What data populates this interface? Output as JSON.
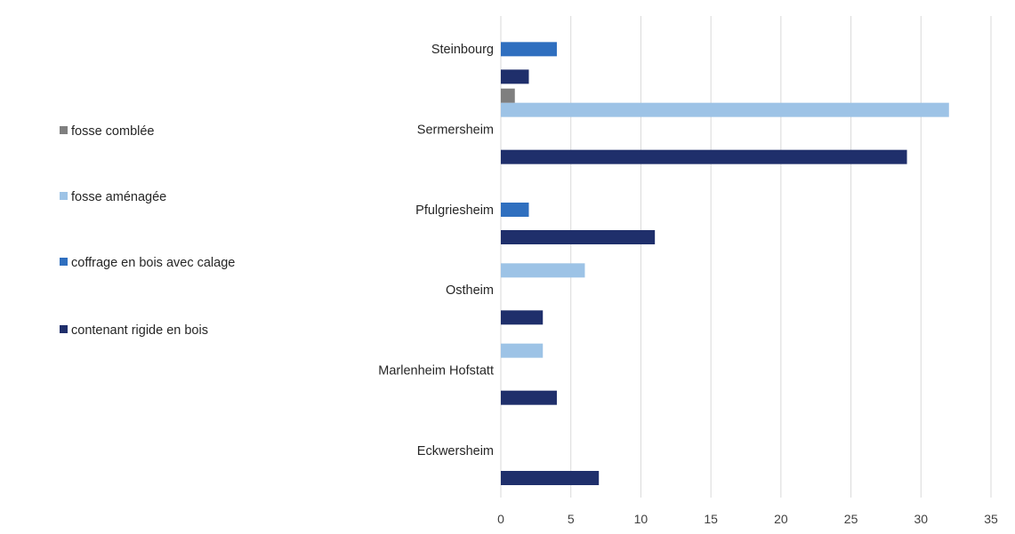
{
  "chart_data": {
    "type": "bar",
    "orientation": "horizontal",
    "categories": [
      "Eckwersheim",
      "Marlenheim Hofstatt",
      "Ostheim",
      "Pfulgriesheim",
      "Sermersheim",
      "Steinbourg"
    ],
    "series": [
      {
        "name": "contenant rigide en bois",
        "color": "#1f2f6b",
        "values": [
          7,
          4,
          3,
          11,
          29,
          2
        ]
      },
      {
        "name": "coffrage en bois avec calage",
        "color": "#2f6fbf",
        "values": [
          0,
          0,
          0,
          2,
          0,
          4
        ]
      },
      {
        "name": "fosse aménagée",
        "color": "#9dc3e6",
        "values": [
          0,
          3,
          6,
          0,
          32,
          0
        ]
      },
      {
        "name": "fosse comblée",
        "color": "#7f7f7f",
        "values": [
          0,
          0,
          0,
          0,
          1,
          0
        ]
      }
    ],
    "xlim": [
      0,
      35
    ],
    "xticks": [
      0,
      5,
      10,
      15,
      20,
      25,
      30,
      35
    ],
    "grid": "vertical",
    "legend": {
      "position": "left",
      "order": [
        "fosse comblée",
        "fosse aménagée",
        "coffrage en bois avec calage",
        "contenant rigide en bois"
      ]
    },
    "title": "",
    "xlabel": "",
    "ylabel": ""
  }
}
